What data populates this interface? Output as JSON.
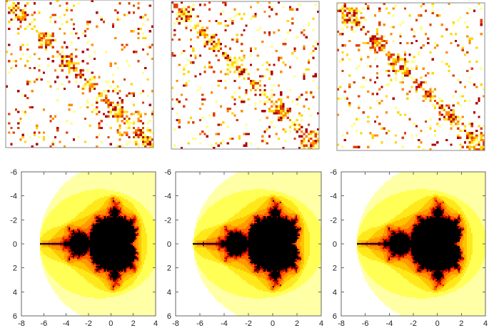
{
  "chart_data": [
    {
      "type": "heatmap"
    },
    {
      "type": "heatmap"
    },
    {
      "type": "heatmap"
    },
    {
      "type": "fractal",
      "xlim": [
        -8,
        4
      ],
      "ylim": [
        -6,
        6
      ],
      "y_reversed": true,
      "xticks": [
        -8,
        -6,
        -4,
        -2,
        0,
        2,
        4
      ],
      "yticks": [
        -6,
        -4,
        -2,
        0,
        2,
        4,
        6
      ],
      "colormap": [
        "#ffffff",
        "#ffffa6",
        "#ffff55",
        "#ffe81a",
        "#ffc400",
        "#ff9a00",
        "#ff6000",
        "#e81c00",
        "#8c0000",
        "#000000"
      ]
    },
    {
      "type": "fractal",
      "xlim": [
        -8,
        4
      ],
      "ylim": [
        -6,
        6
      ],
      "y_reversed": true,
      "xticks": [
        -8,
        -6,
        -4,
        -2,
        0,
        2,
        4
      ],
      "yticks": [
        -6,
        -4,
        -2,
        0,
        2,
        4,
        6
      ],
      "colormap": [
        "#ffffff",
        "#ffffa6",
        "#ffff55",
        "#ffe81a",
        "#ffc400",
        "#ff9a00",
        "#ff6000",
        "#e81c00",
        "#8c0000",
        "#000000"
      ]
    },
    {
      "type": "fractal",
      "xlim": [
        -8,
        4
      ],
      "ylim": [
        -6,
        6
      ],
      "y_reversed": true,
      "xticks": [
        -8,
        -6,
        -4,
        -2,
        0,
        2,
        4
      ],
      "yticks": [
        -6,
        -4,
        -2,
        0,
        2,
        4,
        6
      ],
      "colormap": [
        "#ffffff",
        "#ffffa6",
        "#ffff55",
        "#ffe81a",
        "#ffc400",
        "#ff9a00",
        "#ff6000",
        "#e81c00",
        "#8c0000",
        "#000000"
      ]
    }
  ]
}
